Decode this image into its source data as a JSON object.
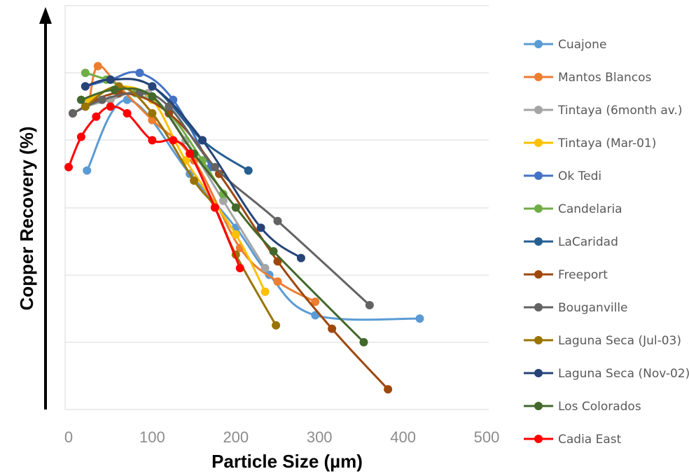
{
  "chart_data": {
    "type": "line",
    "xlabel": "Particle Size (µm)",
    "ylabel": "Copper Recovery (%)",
    "xlim": [
      0,
      500
    ],
    "xticks": [
      "0",
      "100",
      "200",
      "300",
      "400",
      "500"
    ],
    "y_tick_labels_shown": false,
    "y_arrow_axis": true,
    "grid": "horizontal",
    "legend_position": "right",
    "series": [
      {
        "name": "Cuajone",
        "color": "#5b9bd5",
        "x": [
          22,
          70,
          145,
          200,
          240,
          295,
          420
        ],
        "y": [
          75.5,
          86,
          75,
          67,
          60,
          54,
          53.5
        ]
      },
      {
        "name": "Mantos Blancos",
        "color": "#ed7d31",
        "x": [
          25,
          35,
          60,
          100,
          150,
          205,
          250,
          295
        ],
        "y": [
          86,
          91,
          88,
          83,
          77,
          64,
          59,
          56
        ]
      },
      {
        "name": "Tintaya (6month av.)",
        "color": "#a5a5a5",
        "x": [
          20,
          50,
          95,
          140,
          185,
          235
        ],
        "y": [
          85,
          86,
          87,
          80,
          71,
          61
        ]
      },
      {
        "name": "Tintaya (Mar-01)",
        "color": "#ffc000",
        "x": [
          25,
          60,
          100,
          140,
          200,
          235
        ],
        "y": [
          86,
          88,
          86,
          77,
          66,
          57.5
        ]
      },
      {
        "name": "Ok Tedi",
        "color": "#4472c4",
        "x": [
          20,
          50,
          85,
          125,
          170
        ],
        "y": [
          88,
          89,
          90,
          86,
          76
        ]
      },
      {
        "name": "Candelaria",
        "color": "#70ad47",
        "x": [
          20,
          45,
          80,
          120,
          160,
          185
        ],
        "y": [
          90,
          89,
          87,
          84,
          77,
          72
        ]
      },
      {
        "name": "LaCaridad",
        "color": "#255e91",
        "x": [
          20,
          50,
          100,
          160,
          215
        ],
        "y": [
          88,
          89,
          88,
          80,
          75.5
        ]
      },
      {
        "name": "Freeport",
        "color": "#9e480e",
        "x": [
          5,
          60,
          120,
          180,
          250,
          315,
          382
        ],
        "y": [
          84,
          87,
          84,
          75,
          62,
          52,
          43
        ]
      },
      {
        "name": "Bouganville",
        "color": "#636363",
        "x": [
          5,
          40,
          85,
          120,
          175,
          250,
          360
        ],
        "y": [
          84,
          86,
          87,
          85,
          76,
          68,
          55.5
        ]
      },
      {
        "name": "Laguna Seca (Jul-03)",
        "color": "#997300",
        "x": [
          20,
          60,
          100,
          150,
          175,
          200,
          248
        ],
        "y": [
          85,
          88,
          84,
          74,
          70,
          63,
          52.5
        ]
      },
      {
        "name": "Laguna Seca (Nov-02)",
        "color": "#264478",
        "x": [
          20,
          50,
          100,
          160,
          230,
          278
        ],
        "y": [
          88,
          89,
          88,
          80,
          67,
          62.5
        ]
      },
      {
        "name": "Los Colorados",
        "color": "#43682b",
        "x": [
          15,
          55,
          100,
          150,
          200,
          245,
          353
        ],
        "y": [
          86,
          87.5,
          86.5,
          78,
          70,
          63.5,
          50
        ]
      },
      {
        "name": "Cadia East",
        "color": "#ff0000",
        "x": [
          0,
          15,
          33,
          50,
          70,
          100,
          125,
          145,
          175,
          205
        ],
        "y": [
          76,
          80.5,
          83.5,
          85,
          84,
          80,
          80,
          78,
          70,
          61
        ]
      }
    ]
  }
}
